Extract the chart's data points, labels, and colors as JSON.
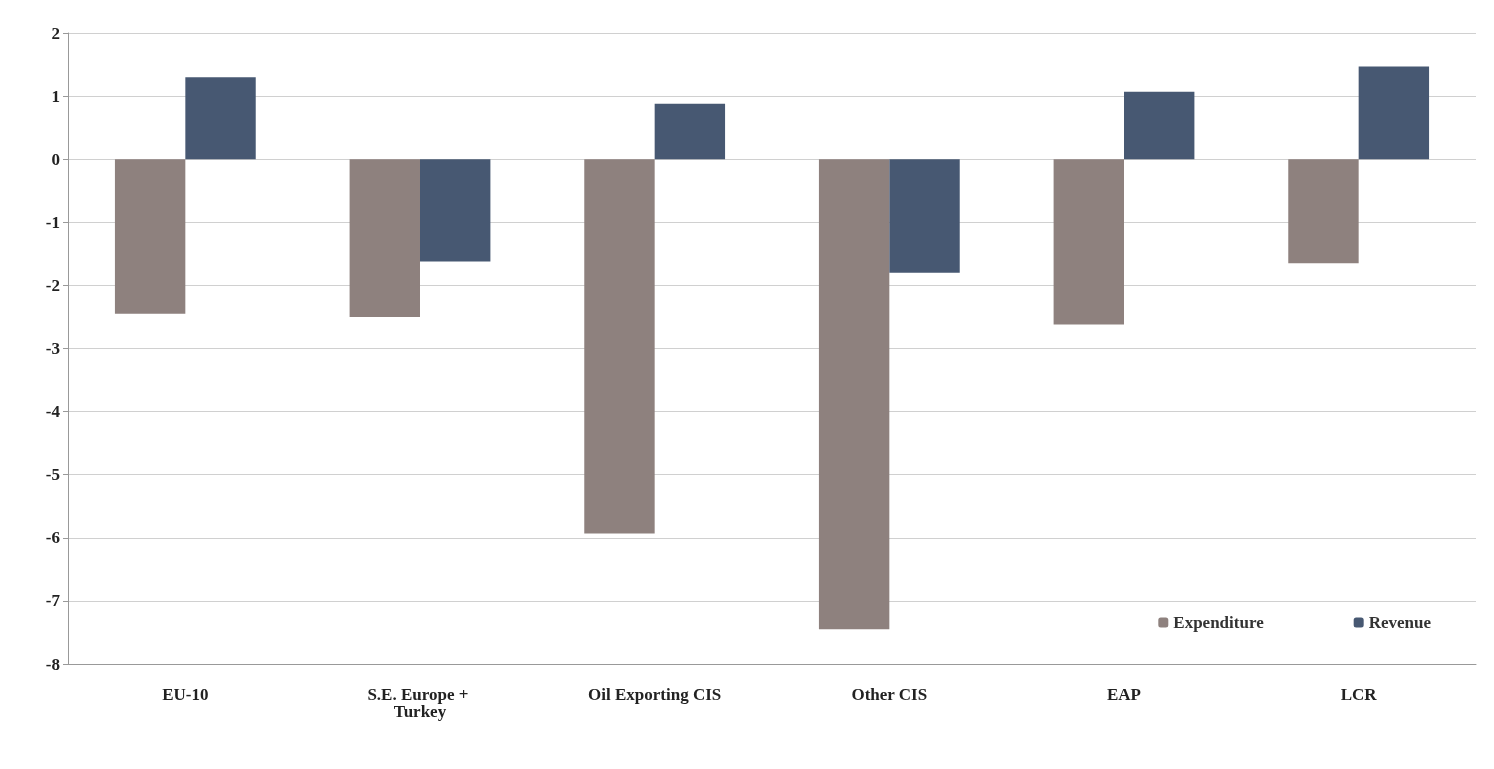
{
  "chart_data": {
    "type": "bar",
    "categories": [
      "EU-10",
      "S.E. Europe + Turkey",
      "Oil Exporting CIS",
      "Other CIS",
      "EAP",
      "LCR"
    ],
    "series": [
      {
        "name": "Expenditure",
        "color": "#8e817e",
        "values": [
          -2.45,
          -2.5,
          -5.93,
          -7.45,
          -2.62,
          -1.65
        ]
      },
      {
        "name": "Revenue",
        "color": "#475872",
        "values": [
          1.3,
          -1.62,
          0.88,
          -1.8,
          1.07,
          1.47
        ]
      }
    ],
    "ylim": [
      -8,
      2
    ],
    "yticks": [
      -8,
      -7,
      -6,
      -5,
      -4,
      -3,
      -2,
      -1,
      0,
      1,
      2
    ],
    "grid": "y",
    "legend": "bottom right"
  }
}
